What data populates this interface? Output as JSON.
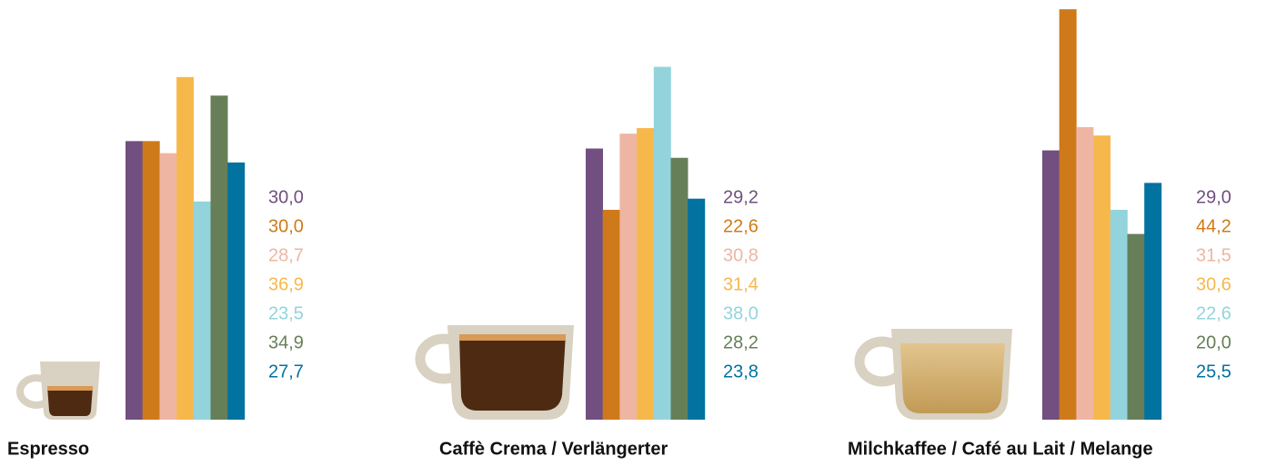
{
  "chart_data": [
    {
      "type": "bar",
      "title": "Espresso",
      "ylim": [
        0,
        45
      ],
      "values": [
        30.0,
        30.0,
        28.7,
        36.9,
        23.5,
        34.9,
        27.7
      ],
      "value_labels": [
        "30,0",
        "30,0",
        "28,7",
        "36,9",
        "23,5",
        "34,9",
        "27,7"
      ],
      "colors": [
        "#714f80",
        "#cf7a1a",
        "#eeb6a2",
        "#f7b84b",
        "#93d4dc",
        "#667f58",
        "#0272a0"
      ]
    },
    {
      "type": "bar",
      "title": "Caffè Crema / Verlängerter",
      "ylim": [
        0,
        45
      ],
      "values": [
        29.2,
        22.6,
        30.8,
        31.4,
        38.0,
        28.2,
        23.8
      ],
      "value_labels": [
        "29,2",
        "22,6",
        "30,8",
        "31,4",
        "38,0",
        "28,2",
        "23,8"
      ],
      "colors": [
        "#714f80",
        "#cf7a1a",
        "#eeb6a2",
        "#f7b84b",
        "#93d4dc",
        "#667f58",
        "#0272a0"
      ]
    },
    {
      "type": "bar",
      "title": "Milchkaffee / Café au Lait / Melange",
      "ylim": [
        0,
        45
      ],
      "values": [
        29.0,
        44.2,
        31.5,
        30.6,
        22.6,
        20.0,
        25.5
      ],
      "value_labels": [
        "29,0",
        "44,2",
        "31,5",
        "30,6",
        "22,6",
        "20,0",
        "25,5"
      ],
      "colors": [
        "#714f80",
        "#cf7a1a",
        "#eeb6a2",
        "#f7b84b",
        "#93d4dc",
        "#667f58",
        "#0272a0"
      ]
    }
  ]
}
